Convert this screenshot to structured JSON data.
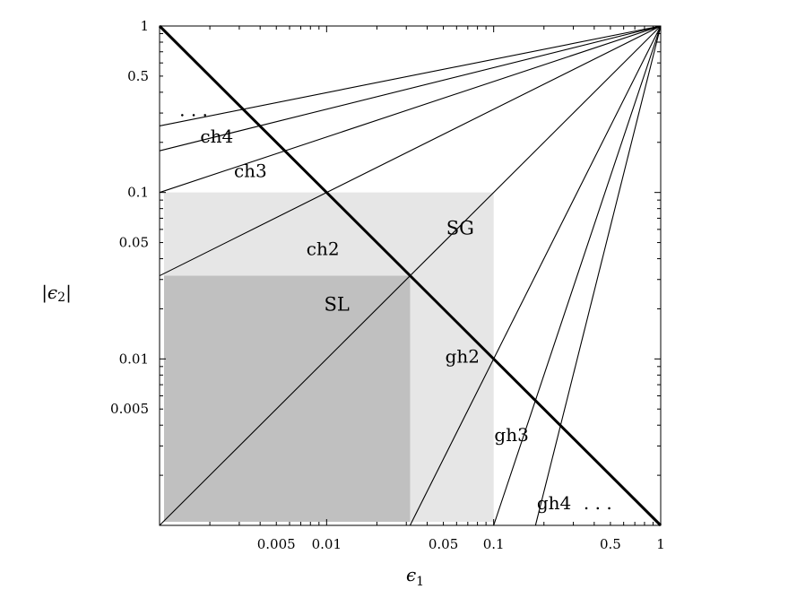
{
  "chart_data": {
    "type": "line",
    "xlabel": "ϵ1",
    "ylabel": "|ϵ2|",
    "xscale": "log",
    "yscale": "log",
    "xlim": [
      0.001,
      1
    ],
    "ylim": [
      0.001,
      1
    ],
    "x_ticks": [
      {
        "value": 0.005,
        "label": "0.005"
      },
      {
        "value": 0.01,
        "label": "0.01"
      },
      {
        "value": 0.05,
        "label": "0.05"
      },
      {
        "value": 0.1,
        "label": "0.1"
      },
      {
        "value": 0.5,
        "label": "0.5"
      },
      {
        "value": 1,
        "label": "1"
      }
    ],
    "y_ticks": [
      {
        "value": 1,
        "label": "1"
      },
      {
        "value": 0.5,
        "label": "0.5"
      },
      {
        "value": 0.1,
        "label": "0.1"
      },
      {
        "value": 0.05,
        "label": "0.05"
      },
      {
        "value": 0.01,
        "label": "0.01"
      },
      {
        "value": 0.005,
        "label": "0.005"
      }
    ],
    "regions": [
      {
        "label": "SG",
        "x_range": [
          0.001,
          0.1
        ],
        "y_range": [
          0.001,
          0.1
        ],
        "fill": "#e6e6e6"
      },
      {
        "label": "SL",
        "x_range": [
          0.001,
          0.0316
        ],
        "y_range": [
          0.001,
          0.0316
        ],
        "fill": "#c0c0c0"
      }
    ],
    "lines": [
      {
        "name": "diagonal",
        "x": [
          0.001,
          1
        ],
        "y": [
          1,
          0.001
        ],
        "bold": true
      },
      {
        "name": "identity",
        "x": [
          0.001,
          1
        ],
        "y": [
          0.001,
          1
        ],
        "bold": false
      },
      {
        "name": "ch2",
        "x": [
          0.001,
          1
        ],
        "y": [
          0.0316,
          1
        ],
        "bold": false
      },
      {
        "name": "ch3",
        "x": [
          0.001,
          1
        ],
        "y": [
          0.1,
          1
        ],
        "bold": false
      },
      {
        "name": "ch4",
        "x": [
          0.001,
          1
        ],
        "y": [
          0.178,
          1
        ],
        "bold": false
      },
      {
        "name": "ch5",
        "x": [
          0.001,
          1
        ],
        "y": [
          0.251,
          1
        ],
        "bold": false
      },
      {
        "name": "gh2",
        "x": [
          0.0316,
          1
        ],
        "y": [
          0.001,
          1
        ],
        "bold": false
      },
      {
        "name": "gh3",
        "x": [
          0.1,
          1
        ],
        "y": [
          0.001,
          1
        ],
        "bold": false
      },
      {
        "name": "gh4",
        "x": [
          0.178,
          1
        ],
        "y": [
          0.001,
          1
        ],
        "bold": false
      }
    ],
    "annotations": [
      {
        "text": "SG",
        "x": 0.063,
        "y": 0.056
      },
      {
        "text": "SL",
        "x": 0.0115,
        "y": 0.0195
      },
      {
        "text": "ch2",
        "x": 0.0095,
        "y": 0.042
      },
      {
        "text": "ch3",
        "x": 0.0035,
        "y": 0.124
      },
      {
        "text": "ch4",
        "x": 0.0022,
        "y": 0.2
      },
      {
        "text": "...",
        "x": 0.0016,
        "y": 0.288
      },
      {
        "text": "gh2",
        "x": 0.065,
        "y": 0.0095
      },
      {
        "text": "gh3",
        "x": 0.128,
        "y": 0.0032
      },
      {
        "text": "gh4",
        "x": 0.23,
        "y": 0.00125
      },
      {
        "text": "...",
        "x": 0.42,
        "y": 0.00125
      }
    ],
    "colors": {
      "sg_region": "#e6e6e6",
      "sl_region": "#c0c0c0",
      "lines": "#000000"
    }
  }
}
